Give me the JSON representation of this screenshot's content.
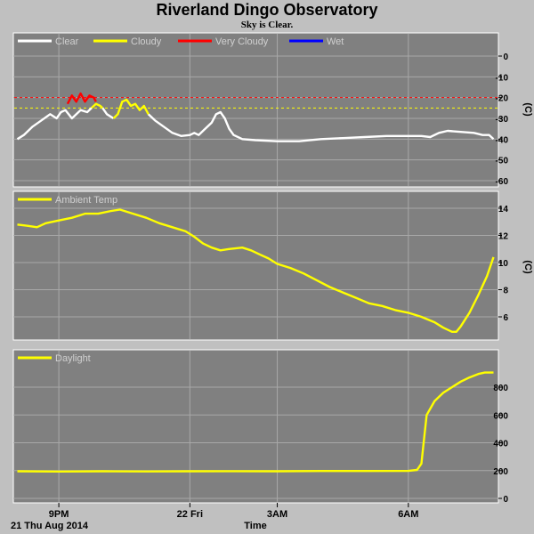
{
  "header": {
    "title": "Riverland Dingo Observatory",
    "subtitle": "Sky is Clear."
  },
  "footer": {
    "date_label": "21 Thu Aug 2014",
    "time_label": "Time"
  },
  "colors": {
    "background": "#c0c0c0",
    "plot_background": "#808080",
    "grid": "#a8a8a8",
    "clear": "#ffffff",
    "cloudy": "#ffff00",
    "very_cloudy": "#ff0000",
    "wet": "#0000ff",
    "temp": "#ffff00",
    "daylight": "#ffff00"
  },
  "chart_data": [
    {
      "type": "line",
      "name": "sky",
      "x_ticks": [
        {
          "t": 1.0,
          "label": "9PM"
        },
        {
          "t": 4.0,
          "label": "22 Fri"
        },
        {
          "t": 6.0,
          "label": "3AM"
        },
        {
          "t": 9.0,
          "label": "6AM"
        }
      ],
      "x_range": [
        0.0,
        11.0
      ],
      "ylabel": "(C)",
      "ylim": [
        -60,
        5
      ],
      "y_ticks": [
        0,
        -10,
        -20,
        -30,
        -40,
        -50,
        -60
      ],
      "thresholds": [
        {
          "value": -20,
          "color": "#ff0000"
        },
        {
          "value": -25,
          "color": "#ffff00"
        }
      ],
      "legend": [
        "Clear",
        "Cloudy",
        "Very Cloudy",
        "Wet"
      ],
      "series": [
        {
          "name": "Clear",
          "color": "#ffffff",
          "segments": [
            [
              [
                0.05,
                -40
              ],
              [
                0.2,
                -38
              ],
              [
                0.4,
                -34
              ],
              [
                0.6,
                -31
              ],
              [
                0.8,
                -28
              ],
              [
                0.95,
                -30
              ],
              [
                1.05,
                -27
              ],
              [
                1.15,
                -26
              ],
              [
                1.3,
                -30
              ],
              [
                1.5,
                -26
              ],
              [
                1.65,
                -27
              ],
              [
                1.75,
                -25
              ]
            ],
            [
              [
                2.0,
                -25
              ],
              [
                2.1,
                -28
              ],
              [
                2.25,
                -30
              ]
            ],
            [
              [
                3.05,
                -28
              ],
              [
                3.2,
                -31
              ],
              [
                3.4,
                -34
              ],
              [
                3.6,
                -37
              ],
              [
                3.8,
                -38.5
              ],
              [
                4.0,
                -38
              ],
              [
                4.1,
                -37
              ],
              [
                4.2,
                -38
              ],
              [
                4.35,
                -35
              ],
              [
                4.5,
                -32
              ],
              [
                4.6,
                -28
              ],
              [
                4.7,
                -27
              ],
              [
                4.8,
                -30
              ],
              [
                4.9,
                -35
              ],
              [
                5.0,
                -38
              ],
              [
                5.2,
                -40
              ],
              [
                5.5,
                -40.5
              ],
              [
                6.0,
                -41
              ],
              [
                6.5,
                -41
              ],
              [
                7.0,
                -40
              ],
              [
                7.5,
                -39.5
              ],
              [
                8.0,
                -39
              ],
              [
                8.5,
                -38.5
              ],
              [
                9.0,
                -38.5
              ],
              [
                9.3,
                -38.5
              ],
              [
                9.5,
                -39
              ],
              [
                9.7,
                -37
              ],
              [
                9.9,
                -36
              ],
              [
                10.2,
                -36.5
              ],
              [
                10.5,
                -37
              ],
              [
                10.7,
                -38
              ],
              [
                10.85,
                -38
              ],
              [
                10.95,
                -40
              ]
            ]
          ]
        },
        {
          "name": "Cloudy",
          "color": "#ffff00",
          "segments": [
            [
              [
                1.75,
                -25
              ],
              [
                1.85,
                -23
              ],
              [
                1.95,
                -24
              ],
              [
                2.0,
                -25
              ]
            ],
            [
              [
                2.25,
                -30
              ],
              [
                2.35,
                -28
              ],
              [
                2.45,
                -22
              ],
              [
                2.55,
                -21
              ],
              [
                2.65,
                -24
              ],
              [
                2.75,
                -23
              ],
              [
                2.85,
                -26
              ],
              [
                2.95,
                -24
              ],
              [
                3.05,
                -28
              ]
            ]
          ]
        },
        {
          "name": "Very Cloudy",
          "color": "#ff0000",
          "segments": [
            [
              [
                1.2,
                -23
              ],
              [
                1.3,
                -19
              ],
              [
                1.4,
                -22
              ],
              [
                1.5,
                -18
              ],
              [
                1.6,
                -22
              ],
              [
                1.7,
                -19
              ],
              [
                1.8,
                -20
              ],
              [
                1.85,
                -22
              ]
            ]
          ]
        },
        {
          "name": "Wet",
          "color": "#0000ff",
          "segments": []
        }
      ]
    },
    {
      "type": "line",
      "name": "ambient",
      "x_range": [
        0.0,
        11.0
      ],
      "ylabel": "(C)",
      "ylim": [
        4,
        15
      ],
      "y_ticks": [
        14,
        12,
        10,
        8,
        6
      ],
      "legend": [
        "Ambient Temp"
      ],
      "series": [
        {
          "name": "Ambient Temp",
          "color": "#ffff00",
          "points": [
            [
              0.05,
              12.8
            ],
            [
              0.3,
              12.7
            ],
            [
              0.5,
              12.6
            ],
            [
              0.7,
              12.9
            ],
            [
              1.0,
              13.1
            ],
            [
              1.3,
              13.3
            ],
            [
              1.6,
              13.6
            ],
            [
              1.9,
              13.6
            ],
            [
              2.2,
              13.8
            ],
            [
              2.4,
              13.9
            ],
            [
              2.7,
              13.6
            ],
            [
              3.0,
              13.3
            ],
            [
              3.3,
              12.9
            ],
            [
              3.6,
              12.6
            ],
            [
              3.9,
              12.3
            ],
            [
              4.1,
              11.9
            ],
            [
              4.3,
              11.4
            ],
            [
              4.5,
              11.1
            ],
            [
              4.7,
              10.9
            ],
            [
              4.9,
              11.0
            ],
            [
              5.2,
              11.1
            ],
            [
              5.4,
              10.9
            ],
            [
              5.6,
              10.6
            ],
            [
              5.8,
              10.3
            ],
            [
              6.0,
              9.9
            ],
            [
              6.3,
              9.6
            ],
            [
              6.6,
              9.2
            ],
            [
              6.9,
              8.7
            ],
            [
              7.2,
              8.2
            ],
            [
              7.5,
              7.8
            ],
            [
              7.8,
              7.4
            ],
            [
              8.1,
              7.0
            ],
            [
              8.4,
              6.8
            ],
            [
              8.7,
              6.5
            ],
            [
              9.0,
              6.3
            ],
            [
              9.3,
              6.0
            ],
            [
              9.6,
              5.6
            ],
            [
              9.8,
              5.2
            ],
            [
              10.0,
              4.9
            ],
            [
              10.1,
              4.9
            ],
            [
              10.2,
              5.3
            ],
            [
              10.4,
              6.3
            ],
            [
              10.6,
              7.6
            ],
            [
              10.8,
              9.0
            ],
            [
              10.95,
              10.4
            ]
          ]
        }
      ]
    },
    {
      "type": "line",
      "name": "daylight",
      "x_range": [
        0.0,
        11.0
      ],
      "ylim": [
        0,
        1000
      ],
      "y_ticks": [
        800,
        600,
        400,
        200,
        0
      ],
      "legend": [
        "Daylight"
      ],
      "series": [
        {
          "name": "Daylight",
          "color": "#ffff00",
          "points": [
            [
              0.05,
              195
            ],
            [
              1.0,
              193
            ],
            [
              2.0,
              195
            ],
            [
              3.0,
              194
            ],
            [
              4.0,
              195
            ],
            [
              5.0,
              196
            ],
            [
              6.0,
              195
            ],
            [
              7.0,
              197
            ],
            [
              8.0,
              197
            ],
            [
              9.0,
              198
            ],
            [
              9.2,
              205
            ],
            [
              9.3,
              250
            ],
            [
              9.35,
              400
            ],
            [
              9.42,
              600
            ],
            [
              9.6,
              700
            ],
            [
              9.8,
              760
            ],
            [
              10.0,
              800
            ],
            [
              10.2,
              840
            ],
            [
              10.4,
              870
            ],
            [
              10.6,
              895
            ],
            [
              10.75,
              905
            ],
            [
              10.95,
              905
            ]
          ]
        }
      ]
    }
  ]
}
